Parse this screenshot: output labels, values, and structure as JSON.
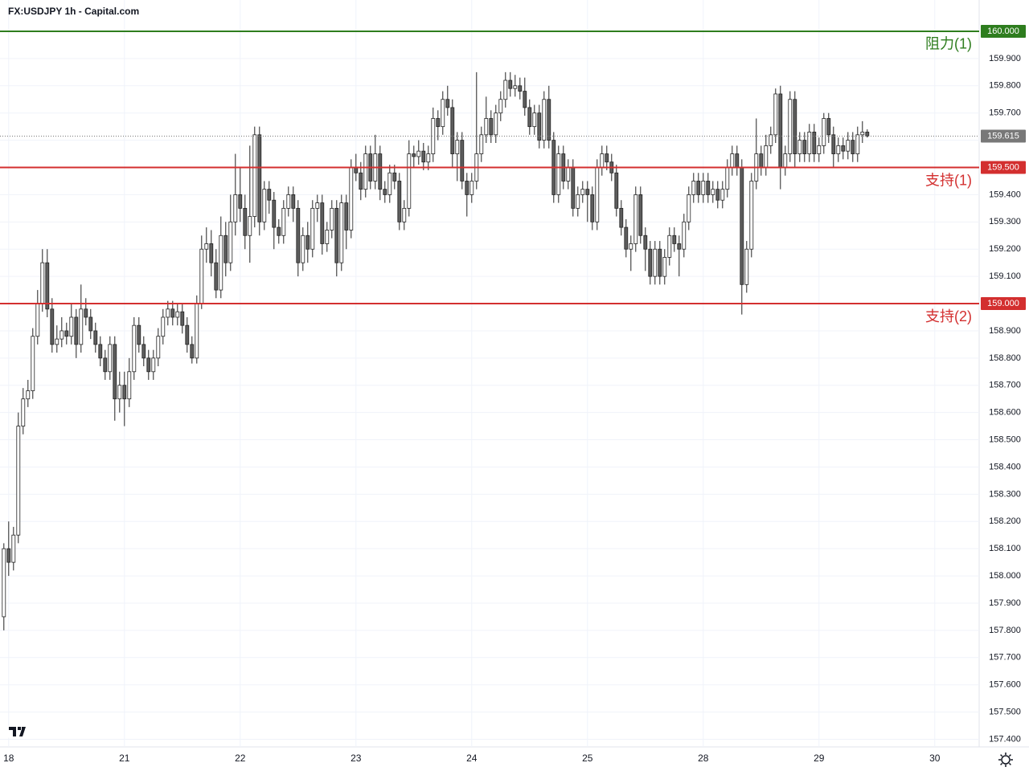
{
  "chart_data": {
    "type": "candlestick",
    "title": "FX:USDJPY 1h - Capital.com",
    "up_color": "#ffffff",
    "down_color": "#5d5d5d",
    "edge_color": "#222222",
    "grid": true,
    "xlim": [
      -0.8,
      202.2
    ],
    "xticks": [
      {
        "value": 1,
        "label": "18"
      },
      {
        "value": 25,
        "label": "21"
      },
      {
        "value": 49,
        "label": "22"
      },
      {
        "value": 73,
        "label": "23"
      },
      {
        "value": 97,
        "label": "24"
      },
      {
        "value": 121,
        "label": "25"
      },
      {
        "value": 145,
        "label": "28"
      },
      {
        "value": 169,
        "label": "29"
      },
      {
        "value": 193,
        "label": "30"
      }
    ],
    "ylim": [
      157.372,
      160.115
    ],
    "yticks": [
      {
        "value": 157.4,
        "label": "157.400"
      },
      {
        "value": 157.5,
        "label": "157.500"
      },
      {
        "value": 157.6,
        "label": "157.600"
      },
      {
        "value": 157.7,
        "label": "157.700"
      },
      {
        "value": 157.8,
        "label": "157.800"
      },
      {
        "value": 157.9,
        "label": "157.900"
      },
      {
        "value": 158.0,
        "label": "158.000"
      },
      {
        "value": 158.1,
        "label": "158.100"
      },
      {
        "value": 158.2,
        "label": "158.200"
      },
      {
        "value": 158.3,
        "label": "158.300"
      },
      {
        "value": 158.4,
        "label": "158.400"
      },
      {
        "value": 158.5,
        "label": "158.500"
      },
      {
        "value": 158.6,
        "label": "158.600"
      },
      {
        "value": 158.7,
        "label": "158.700"
      },
      {
        "value": 158.8,
        "label": "158.800"
      },
      {
        "value": 158.9,
        "label": "158.900"
      },
      {
        "value": 159.1,
        "label": "159.100"
      },
      {
        "value": 159.2,
        "label": "159.200"
      },
      {
        "value": 159.3,
        "label": "159.300"
      },
      {
        "value": 159.4,
        "label": "159.400"
      },
      {
        "value": 159.6,
        "label": "159.600"
      },
      {
        "value": 159.7,
        "label": "159.700"
      },
      {
        "value": 159.8,
        "label": "159.800"
      },
      {
        "value": 159.9,
        "label": "159.900"
      }
    ],
    "levels": [
      {
        "value": 160,
        "label": "160.000",
        "name": "阻力(1)",
        "color": "#2e7d1e"
      },
      {
        "value": 159.5,
        "label": "159.500",
        "name": "支持(1)",
        "color": "#d32f2f"
      },
      {
        "value": 159,
        "label": "159.000",
        "name": "支持(2)",
        "color": "#d32f2f"
      }
    ],
    "last_price": 159.615,
    "last_color": "#787878",
    "x": [
      0,
      1,
      2,
      3,
      4,
      5,
      6,
      7,
      8,
      9,
      10,
      11,
      12,
      13,
      14,
      15,
      16,
      17,
      18,
      19,
      20,
      21,
      22,
      23,
      24,
      25,
      26,
      27,
      28,
      29,
      30,
      31,
      32,
      33,
      34,
      35,
      36,
      37,
      38,
      39,
      40,
      41,
      42,
      43,
      44,
      45,
      46,
      47,
      48,
      49,
      50,
      51,
      52,
      53,
      54,
      55,
      56,
      57,
      58,
      59,
      60,
      61,
      62,
      63,
      64,
      65,
      66,
      67,
      68,
      69,
      70,
      71,
      72,
      73,
      74,
      75,
      76,
      77,
      78,
      79,
      80,
      81,
      82,
      83,
      84,
      85,
      86,
      87,
      88,
      89,
      90,
      91,
      92,
      93,
      94,
      95,
      96,
      97,
      98,
      99,
      100,
      101,
      102,
      103,
      104,
      105,
      106,
      107,
      108,
      109,
      110,
      111,
      112,
      113,
      114,
      115,
      116,
      117,
      118,
      119,
      120,
      121,
      122,
      123,
      124,
      125,
      126,
      127,
      128,
      129,
      130,
      131,
      132,
      133,
      134,
      135,
      136,
      137,
      138,
      139,
      140,
      141,
      142,
      143,
      144,
      145,
      146,
      147,
      148,
      149,
      150,
      151,
      152,
      153,
      154,
      155,
      156,
      157,
      158,
      159,
      160,
      161,
      162,
      163,
      164,
      165,
      166,
      167,
      168,
      169,
      170,
      171,
      172,
      173,
      174,
      175,
      176,
      177,
      178,
      179
    ],
    "ohlc": [
      [
        157.85,
        158.12,
        157.8,
        158.1
      ],
      [
        158.1,
        158.2,
        158.0,
        158.05
      ],
      [
        158.05,
        158.18,
        158.02,
        158.15
      ],
      [
        158.15,
        158.6,
        158.12,
        158.55
      ],
      [
        158.55,
        158.69,
        158.52,
        158.65
      ],
      [
        158.65,
        158.72,
        158.62,
        158.68
      ],
      [
        158.68,
        158.91,
        158.65,
        158.88
      ],
      [
        158.88,
        159.05,
        158.85,
        159.0
      ],
      [
        159.0,
        159.2,
        158.97,
        159.15
      ],
      [
        159.15,
        159.2,
        158.95,
        158.98
      ],
      [
        158.98,
        159.02,
        158.82,
        158.85
      ],
      [
        158.85,
        158.92,
        158.82,
        158.87
      ],
      [
        158.87,
        158.95,
        158.84,
        158.9
      ],
      [
        158.9,
        158.93,
        158.85,
        158.88
      ],
      [
        158.88,
        159.0,
        158.85,
        158.95
      ],
      [
        158.95,
        158.98,
        158.8,
        158.85
      ],
      [
        158.85,
        159.07,
        158.82,
        158.98
      ],
      [
        158.98,
        159.02,
        158.92,
        158.95
      ],
      [
        158.95,
        158.98,
        158.87,
        158.9
      ],
      [
        158.9,
        158.93,
        158.82,
        158.85
      ],
      [
        158.85,
        158.88,
        158.77,
        158.8
      ],
      [
        158.8,
        158.83,
        158.72,
        158.75
      ],
      [
        158.75,
        158.88,
        158.72,
        158.85
      ],
      [
        158.85,
        158.88,
        158.57,
        158.65
      ],
      [
        158.65,
        158.75,
        158.6,
        158.7
      ],
      [
        158.7,
        158.75,
        158.55,
        158.65
      ],
      [
        158.65,
        158.8,
        158.62,
        158.75
      ],
      [
        158.75,
        158.95,
        158.72,
        158.92
      ],
      [
        158.92,
        158.95,
        158.82,
        158.85
      ],
      [
        158.85,
        158.88,
        158.77,
        158.8
      ],
      [
        158.8,
        158.83,
        158.72,
        158.75
      ],
      [
        158.75,
        158.83,
        158.72,
        158.8
      ],
      [
        158.8,
        158.91,
        158.77,
        158.88
      ],
      [
        158.88,
        158.98,
        158.85,
        158.95
      ],
      [
        158.95,
        159.01,
        158.92,
        158.98
      ],
      [
        158.98,
        159.01,
        158.92,
        158.95
      ],
      [
        158.95,
        159.0,
        158.92,
        158.97
      ],
      [
        158.97,
        159.0,
        158.89,
        158.92
      ],
      [
        158.92,
        158.95,
        158.82,
        158.85
      ],
      [
        158.85,
        158.88,
        158.78,
        158.8
      ],
      [
        158.8,
        159.03,
        158.78,
        159.0
      ],
      [
        159.0,
        159.25,
        158.98,
        159.2
      ],
      [
        159.2,
        159.28,
        159.15,
        159.22
      ],
      [
        159.22,
        159.27,
        159.1,
        159.15
      ],
      [
        159.15,
        159.2,
        159.02,
        159.05
      ],
      [
        159.05,
        159.32,
        159.02,
        159.25
      ],
      [
        159.25,
        159.3,
        159.1,
        159.15
      ],
      [
        159.15,
        159.4,
        159.12,
        159.3
      ],
      [
        159.3,
        159.55,
        159.25,
        159.4
      ],
      [
        159.4,
        159.5,
        159.3,
        159.35
      ],
      [
        159.35,
        159.4,
        159.2,
        159.25
      ],
      [
        159.25,
        159.58,
        159.15,
        159.32
      ],
      [
        159.32,
        159.65,
        159.28,
        159.62
      ],
      [
        159.62,
        159.65,
        159.25,
        159.3
      ],
      [
        159.3,
        159.45,
        159.27,
        159.42
      ],
      [
        159.42,
        159.45,
        159.33,
        159.38
      ],
      [
        159.38,
        159.41,
        159.2,
        159.28
      ],
      [
        159.28,
        159.31,
        159.22,
        159.25
      ],
      [
        159.25,
        159.38,
        159.22,
        159.35
      ],
      [
        159.35,
        159.43,
        159.32,
        159.4
      ],
      [
        159.4,
        159.43,
        159.3,
        159.35
      ],
      [
        159.35,
        159.38,
        159.1,
        159.15
      ],
      [
        159.15,
        159.28,
        159.12,
        159.25
      ],
      [
        159.25,
        159.3,
        159.15,
        159.2
      ],
      [
        159.2,
        159.38,
        159.17,
        159.35
      ],
      [
        159.35,
        159.4,
        159.3,
        159.37
      ],
      [
        159.37,
        159.4,
        159.18,
        159.22
      ],
      [
        159.22,
        159.3,
        159.19,
        159.27
      ],
      [
        159.27,
        159.38,
        159.24,
        159.35
      ],
      [
        159.35,
        159.38,
        159.1,
        159.15
      ],
      [
        159.15,
        159.4,
        159.12,
        159.37
      ],
      [
        159.37,
        159.4,
        159.2,
        159.27
      ],
      [
        159.27,
        159.53,
        159.24,
        159.5
      ],
      [
        159.5,
        159.55,
        159.45,
        159.48
      ],
      [
        159.48,
        159.52,
        159.38,
        159.42
      ],
      [
        159.42,
        159.58,
        159.39,
        159.55
      ],
      [
        159.55,
        159.58,
        159.42,
        159.45
      ],
      [
        159.45,
        159.62,
        159.42,
        159.55
      ],
      [
        159.55,
        159.58,
        159.38,
        159.42
      ],
      [
        159.42,
        159.45,
        159.37,
        159.4
      ],
      [
        159.4,
        159.51,
        159.37,
        159.48
      ],
      [
        159.48,
        159.51,
        159.42,
        159.45
      ],
      [
        159.45,
        159.48,
        159.27,
        159.3
      ],
      [
        159.3,
        159.38,
        159.27,
        159.35
      ],
      [
        159.35,
        159.6,
        159.32,
        159.55
      ],
      [
        159.55,
        159.58,
        159.5,
        159.54
      ],
      [
        159.54,
        159.6,
        159.51,
        159.56
      ],
      [
        159.56,
        159.59,
        159.49,
        159.52
      ],
      [
        159.52,
        159.58,
        159.49,
        159.55
      ],
      [
        159.55,
        159.72,
        159.52,
        159.68
      ],
      [
        159.68,
        159.71,
        159.6,
        159.65
      ],
      [
        159.65,
        159.78,
        159.62,
        159.75
      ],
      [
        159.75,
        159.8,
        159.69,
        159.72
      ],
      [
        159.72,
        159.75,
        159.5,
        159.55
      ],
      [
        159.55,
        159.63,
        159.45,
        159.6
      ],
      [
        159.6,
        159.63,
        159.42,
        159.45
      ],
      [
        159.45,
        159.48,
        159.32,
        159.4
      ],
      [
        159.4,
        159.48,
        159.37,
        159.45
      ],
      [
        159.45,
        159.85,
        159.42,
        159.55
      ],
      [
        159.55,
        159.65,
        159.52,
        159.62
      ],
      [
        159.62,
        159.76,
        159.59,
        159.68
      ],
      [
        159.68,
        159.71,
        159.59,
        159.62
      ],
      [
        159.62,
        159.73,
        159.59,
        159.7
      ],
      [
        159.7,
        159.78,
        159.67,
        159.75
      ],
      [
        159.75,
        159.85,
        159.72,
        159.82
      ],
      [
        159.82,
        159.85,
        159.76,
        159.79
      ],
      [
        159.79,
        159.84,
        159.76,
        159.8
      ],
      [
        159.8,
        159.83,
        159.75,
        159.78
      ],
      [
        159.78,
        159.83,
        159.69,
        159.72
      ],
      [
        159.72,
        159.75,
        159.62,
        159.65
      ],
      [
        159.65,
        159.73,
        159.62,
        159.7
      ],
      [
        159.7,
        159.73,
        159.57,
        159.6
      ],
      [
        159.6,
        159.78,
        159.57,
        159.75
      ],
      [
        159.75,
        159.8,
        159.57,
        159.6
      ],
      [
        159.6,
        159.63,
        159.37,
        159.4
      ],
      [
        159.4,
        159.58,
        159.37,
        159.55
      ],
      [
        159.55,
        159.58,
        159.42,
        159.45
      ],
      [
        159.45,
        159.53,
        159.42,
        159.5
      ],
      [
        159.5,
        159.53,
        159.32,
        159.35
      ],
      [
        159.35,
        159.43,
        159.32,
        159.4
      ],
      [
        159.4,
        159.45,
        159.37,
        159.42
      ],
      [
        159.42,
        159.45,
        159.3,
        159.4
      ],
      [
        159.4,
        159.43,
        159.27,
        159.3
      ],
      [
        159.3,
        159.53,
        159.27,
        159.5
      ],
      [
        159.5,
        159.58,
        159.47,
        159.55
      ],
      [
        159.55,
        159.58,
        159.49,
        159.52
      ],
      [
        159.52,
        159.55,
        159.45,
        159.48
      ],
      [
        159.48,
        159.51,
        159.32,
        159.35
      ],
      [
        159.35,
        159.38,
        159.25,
        159.28
      ],
      [
        159.28,
        159.31,
        159.17,
        159.2
      ],
      [
        159.2,
        159.25,
        159.12,
        159.22
      ],
      [
        159.22,
        159.43,
        159.19,
        159.4
      ],
      [
        159.4,
        159.43,
        159.22,
        159.25
      ],
      [
        159.25,
        159.28,
        159.12,
        159.2
      ],
      [
        159.2,
        159.23,
        159.07,
        159.1
      ],
      [
        159.1,
        159.23,
        159.07,
        159.2
      ],
      [
        159.2,
        159.23,
        159.07,
        159.1
      ],
      [
        159.1,
        159.2,
        159.07,
        159.17
      ],
      [
        159.17,
        159.28,
        159.14,
        159.25
      ],
      [
        159.25,
        159.28,
        159.19,
        159.22
      ],
      [
        159.22,
        159.25,
        159.1,
        159.2
      ],
      [
        159.2,
        159.33,
        159.17,
        159.3
      ],
      [
        159.3,
        159.43,
        159.27,
        159.4
      ],
      [
        159.4,
        159.48,
        159.37,
        159.45
      ],
      [
        159.45,
        159.48,
        159.37,
        159.4
      ],
      [
        159.4,
        159.48,
        159.37,
        159.45
      ],
      [
        159.45,
        159.48,
        159.37,
        159.4
      ],
      [
        159.4,
        159.45,
        159.37,
        159.42
      ],
      [
        159.42,
        159.45,
        159.35,
        159.38
      ],
      [
        159.38,
        159.45,
        159.35,
        159.42
      ],
      [
        159.42,
        159.53,
        159.39,
        159.5
      ],
      [
        159.5,
        159.58,
        159.47,
        159.55
      ],
      [
        159.55,
        159.58,
        159.47,
        159.5
      ],
      [
        159.5,
        159.53,
        158.96,
        159.07
      ],
      [
        159.07,
        159.23,
        159.04,
        159.2
      ],
      [
        159.2,
        159.48,
        159.17,
        159.45
      ],
      [
        159.45,
        159.68,
        159.42,
        159.55
      ],
      [
        159.55,
        159.58,
        159.47,
        159.5
      ],
      [
        159.5,
        159.62,
        159.47,
        159.58
      ],
      [
        159.58,
        159.65,
        159.55,
        159.62
      ],
      [
        159.62,
        159.79,
        159.59,
        159.77
      ],
      [
        159.77,
        159.8,
        159.42,
        159.5
      ],
      [
        159.5,
        159.58,
        159.47,
        159.55
      ],
      [
        159.55,
        159.78,
        159.52,
        159.75
      ],
      [
        159.75,
        159.78,
        159.5,
        159.55
      ],
      [
        159.55,
        159.63,
        159.52,
        159.6
      ],
      [
        159.6,
        159.63,
        159.52,
        159.55
      ],
      [
        159.55,
        159.66,
        159.52,
        159.63
      ],
      [
        159.63,
        159.66,
        159.52,
        159.55
      ],
      [
        159.55,
        159.61,
        159.52,
        159.58
      ],
      [
        159.58,
        159.7,
        159.55,
        159.68
      ],
      [
        159.68,
        159.7,
        159.59,
        159.62
      ],
      [
        159.62,
        159.65,
        159.5,
        159.55
      ],
      [
        159.55,
        159.61,
        159.52,
        159.58
      ],
      [
        159.58,
        159.61,
        159.53,
        159.56
      ],
      [
        159.56,
        159.63,
        159.53,
        159.6
      ],
      [
        159.6,
        159.63,
        159.52,
        159.55
      ],
      [
        159.55,
        159.65,
        159.52,
        159.62
      ],
      [
        159.62,
        159.67,
        159.59,
        159.63
      ],
      [
        159.63,
        159.64,
        159.61,
        159.615
      ]
    ]
  }
}
